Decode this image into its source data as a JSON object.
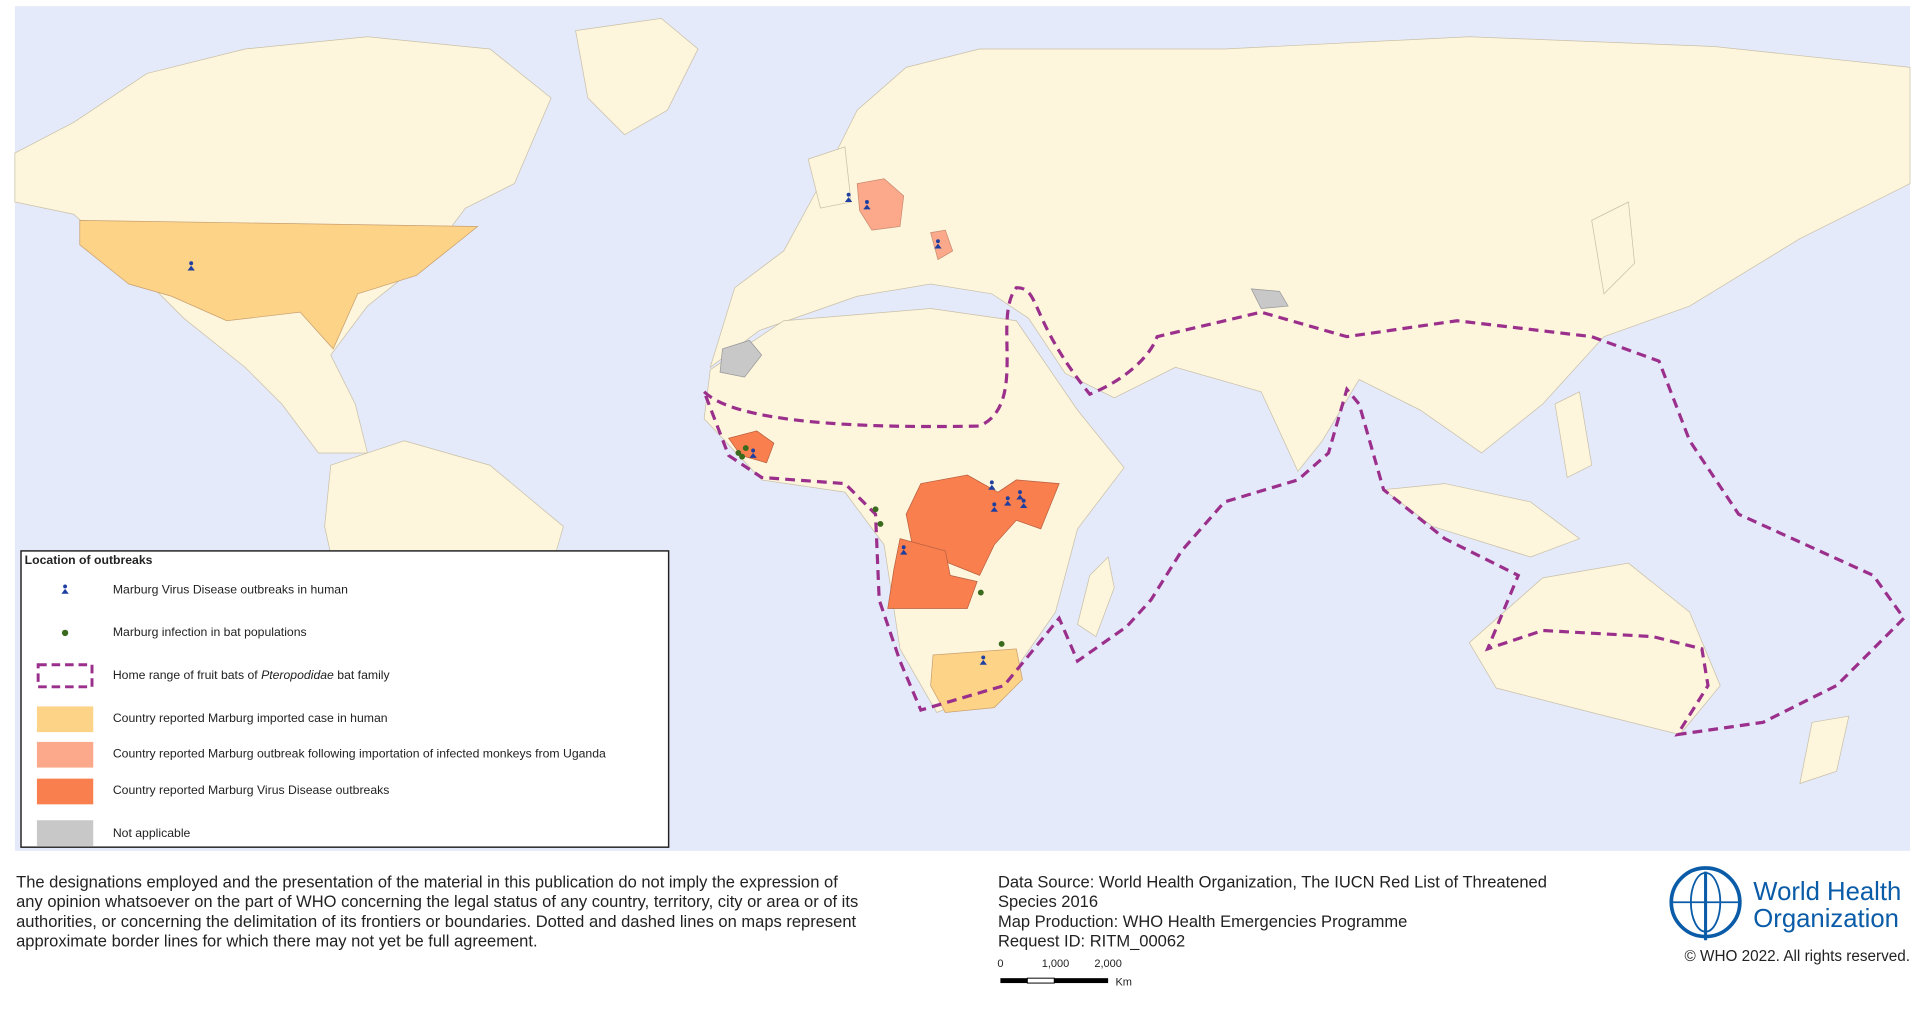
{
  "legend": {
    "title": "Location of outbreaks",
    "items": {
      "human": "Marburg Virus Disease outbreaks in human",
      "bat": "Marburg infection in bat populations",
      "range": {
        "before": "Home range of fruit bats of ",
        "italic": "Pteropodidae",
        "after": " bat family"
      },
      "imported": "Country reported Marburg imported case in human",
      "monkeys": "Country reported Marburg outbreak following importation of infected monkeys from Uganda",
      "outbreaks": "Country reported Marburg Virus Disease outbreaks",
      "na": "Not applicable"
    }
  },
  "disclaimer": [
    "The designations employed and the presentation of the material in this publication do not imply the expression of",
    "any opinion whatsoever on the part of WHO concerning the legal status of any country, territory, city or area or of its",
    "authorities, or concerning the delimitation of its frontiers or boundaries. Dotted and dashed lines on maps represent",
    "approximate border lines for which there may not yet be full agreement."
  ],
  "source": [
    "Data Source: World Health Organization, The IUCN Red List of Threatened",
    "Species 2016",
    "Map Production: WHO Health Emergencies Programme",
    "Request ID: RITM_00062"
  ],
  "scale": {
    "labels": [
      "0",
      "1,000",
      "2,000"
    ],
    "unit": "Km"
  },
  "logo": {
    "line1": "World Health",
    "line2": "Organization"
  },
  "copyright": "© WHO 2022. All rights reserved."
}
